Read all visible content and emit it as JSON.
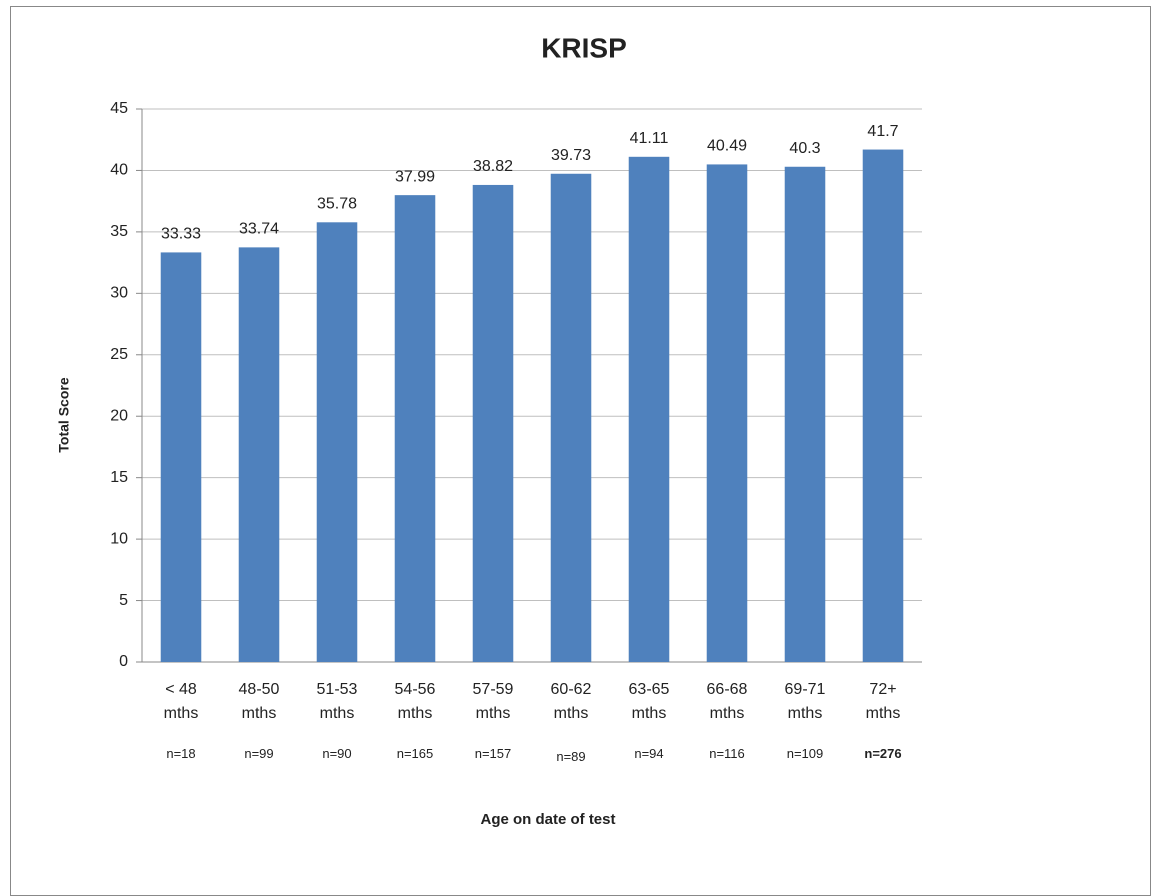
{
  "chart_data": {
    "type": "bar",
    "title": "KRISP",
    "categories": [
      "< 48 mths",
      "48-50 mths",
      "51-53 mths",
      "54-56 mths",
      "57-59 mths",
      "60-62 mths",
      "63-65 mths",
      "66-68 mths",
      "69-71 mths",
      "72+ mths"
    ],
    "sample_sizes": [
      "n=18",
      "n=99",
      "n=90",
      "n=165",
      "n=157",
      "n=89",
      "n=94",
      "n=116",
      "n=109",
      "n=276"
    ],
    "values": [
      33.33,
      33.74,
      35.78,
      37.99,
      38.82,
      39.73,
      41.11,
      40.49,
      40.3,
      41.7
    ],
    "color": "#4f81bd",
    "ylim": [
      0,
      45
    ],
    "yticks": [
      0,
      5,
      10,
      15,
      20,
      25,
      30,
      35,
      40,
      45
    ],
    "grid": true,
    "y_label": "Total Score",
    "x_label": "Age on date of test"
  }
}
